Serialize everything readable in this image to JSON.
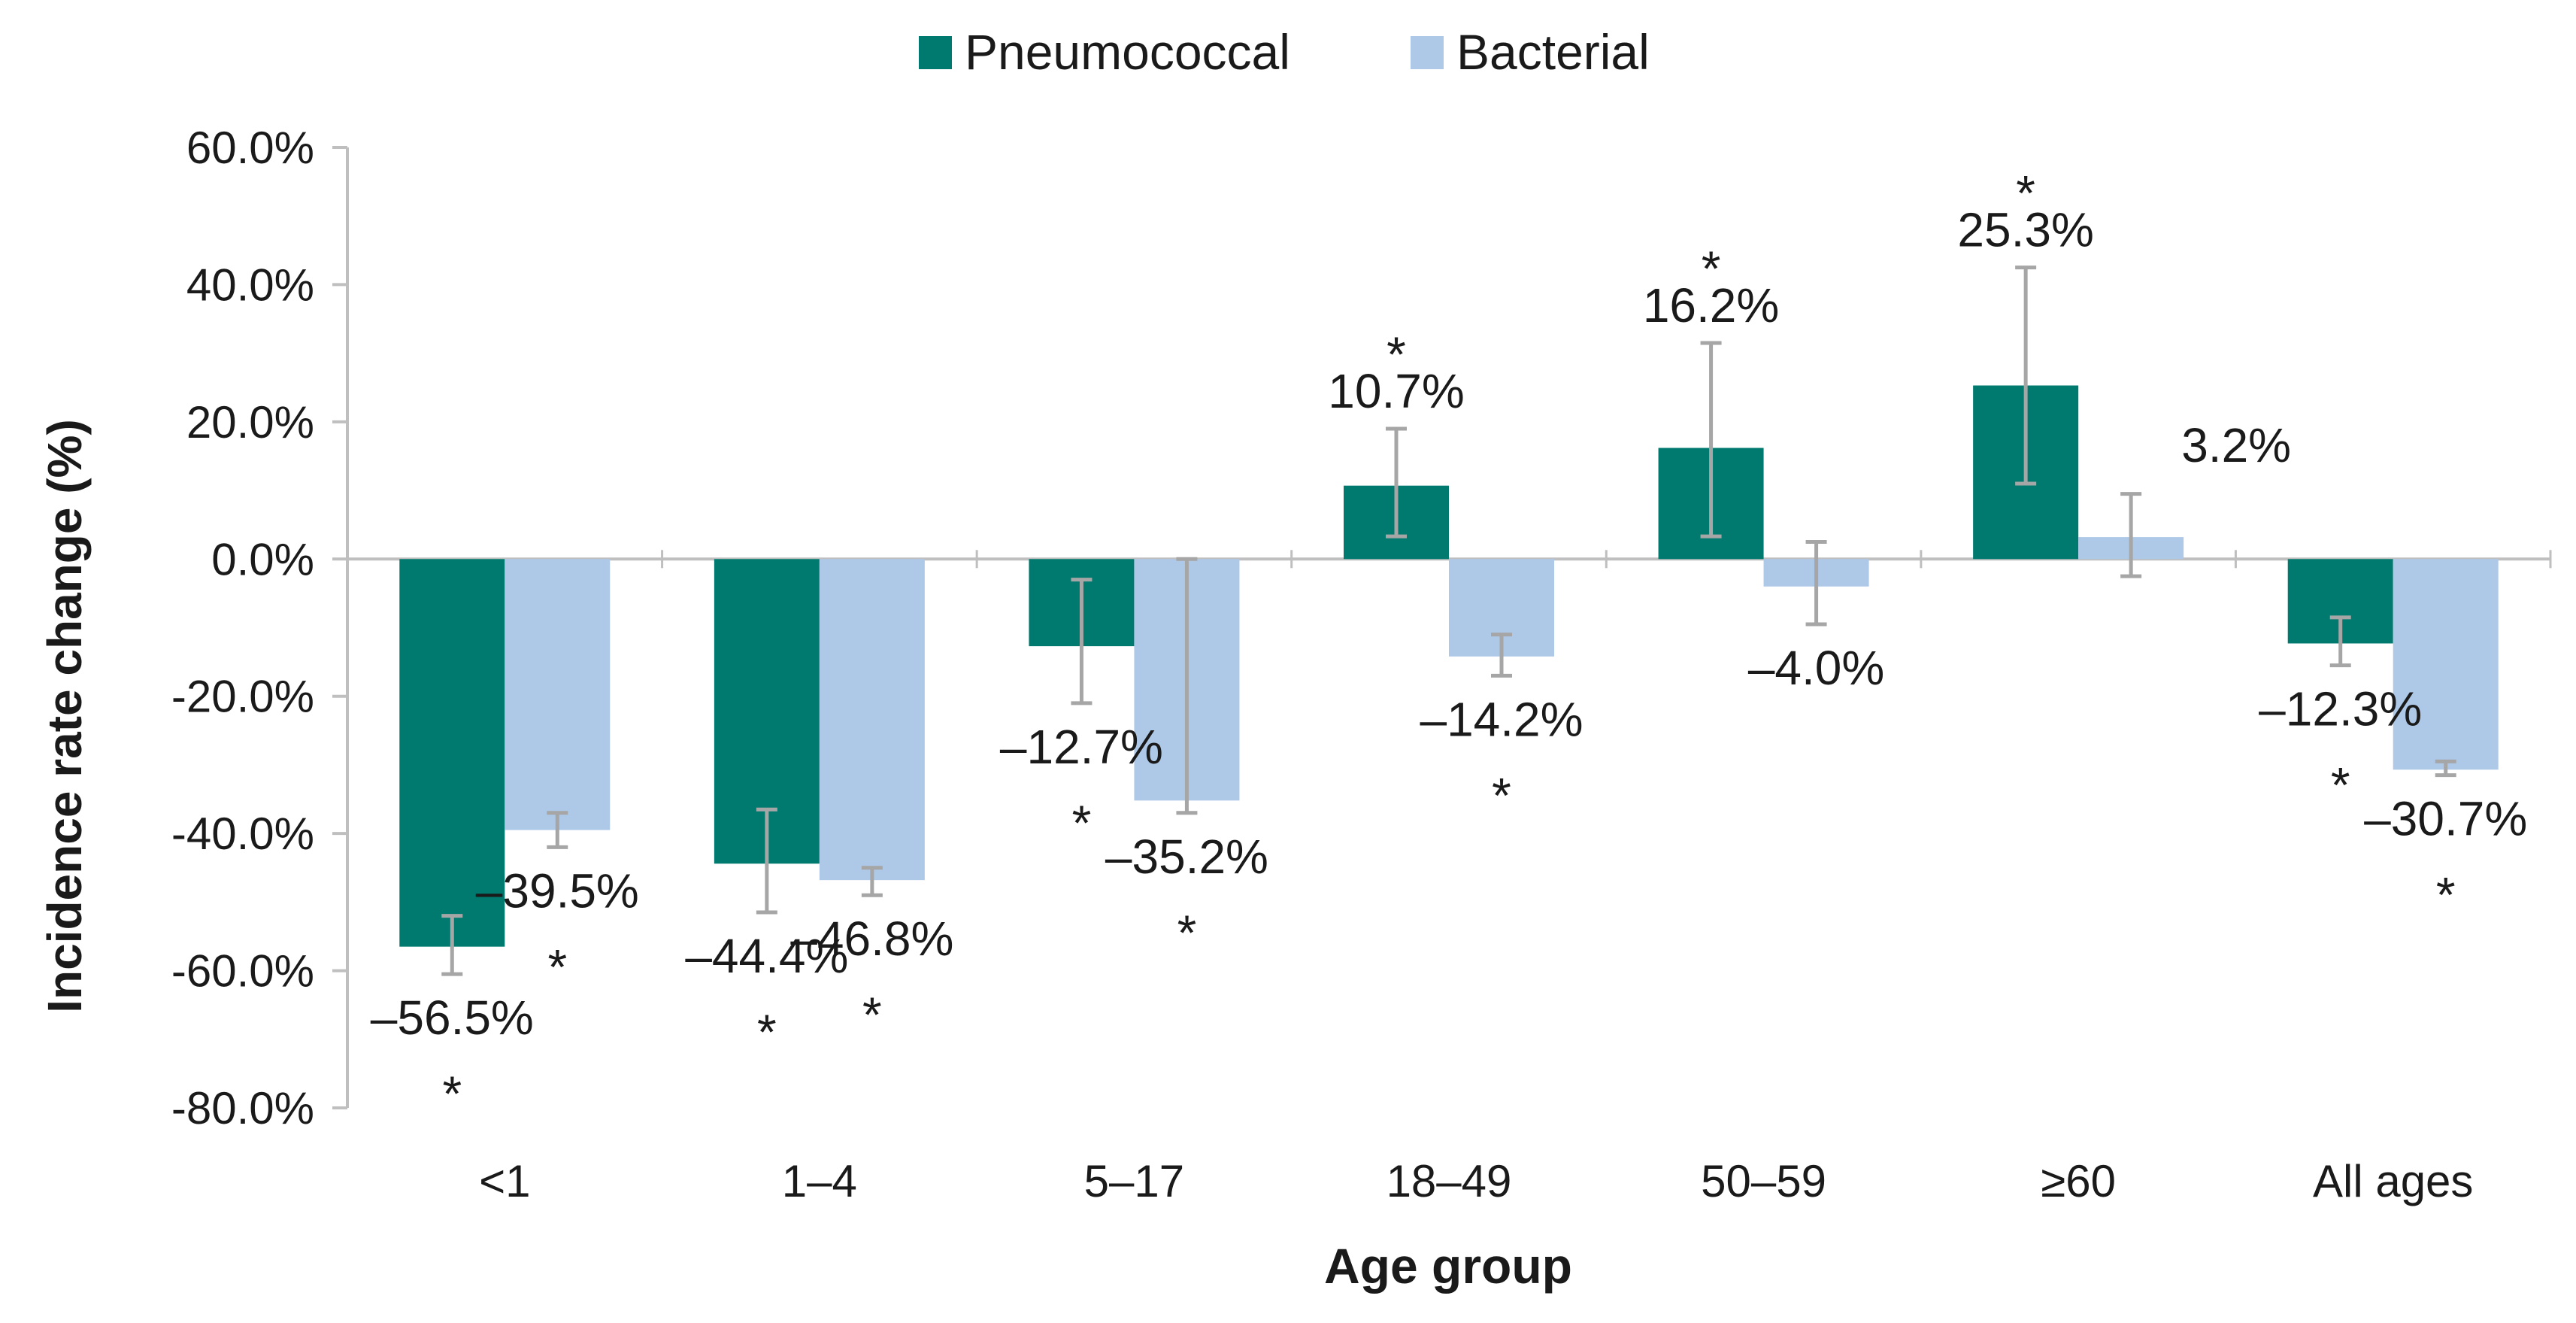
{
  "chart_data": {
    "type": "bar",
    "title": "",
    "xlabel": "Age group",
    "ylabel": "Incidence rate change (%)",
    "ylim": [
      -80,
      60
    ],
    "ytick_step": 20,
    "ytick_labels": [
      "60.0%",
      "40.0%",
      "20.0%",
      "0.0%",
      "-20.0%",
      "-40.0%",
      "-60.0%",
      "-80.0%"
    ],
    "grid": false,
    "legend_position": "top-center",
    "categories": [
      "<1",
      "1–4",
      "5–17",
      "18–49",
      "50–59",
      "≥60",
      "All ages"
    ],
    "series": [
      {
        "name": "Pneumococcal",
        "color": "#007A6E",
        "values": [
          -56.5,
          -44.4,
          -12.7,
          10.7,
          16.2,
          25.3,
          -12.3
        ],
        "labels": [
          "–56.5%",
          "–44.4%",
          "–12.7%",
          "10.7%",
          "16.2%",
          "25.3%",
          "–12.3%"
        ],
        "error_low": [
          -60.5,
          -51.5,
          -21,
          3.3,
          3.3,
          11,
          -15.5
        ],
        "error_high": [
          -52,
          -36.5,
          -3,
          19,
          31.5,
          42.5,
          -8.5
        ],
        "significant": [
          true,
          true,
          true,
          true,
          true,
          true,
          true
        ]
      },
      {
        "name": "Bacterial",
        "color": "#AEC8E8",
        "values": [
          -39.5,
          -46.8,
          -35.2,
          -14.2,
          -4.0,
          3.2,
          -30.7
        ],
        "labels": [
          "–39.5%",
          "–46.8%",
          "–35.2%",
          "–14.2%",
          "–4.0%",
          "3.2%",
          "–30.7%"
        ],
        "error_low": [
          -42,
          -49,
          -37,
          -17,
          -9.5,
          -2.5,
          -31.5
        ],
        "error_high": [
          -37,
          -45,
          0,
          -11,
          2.5,
          9.5,
          -29.5
        ],
        "significant": [
          true,
          true,
          true,
          true,
          false,
          false,
          true
        ]
      }
    ],
    "significance_marker": "*",
    "error_bar_color": "#A6A6A6"
  }
}
